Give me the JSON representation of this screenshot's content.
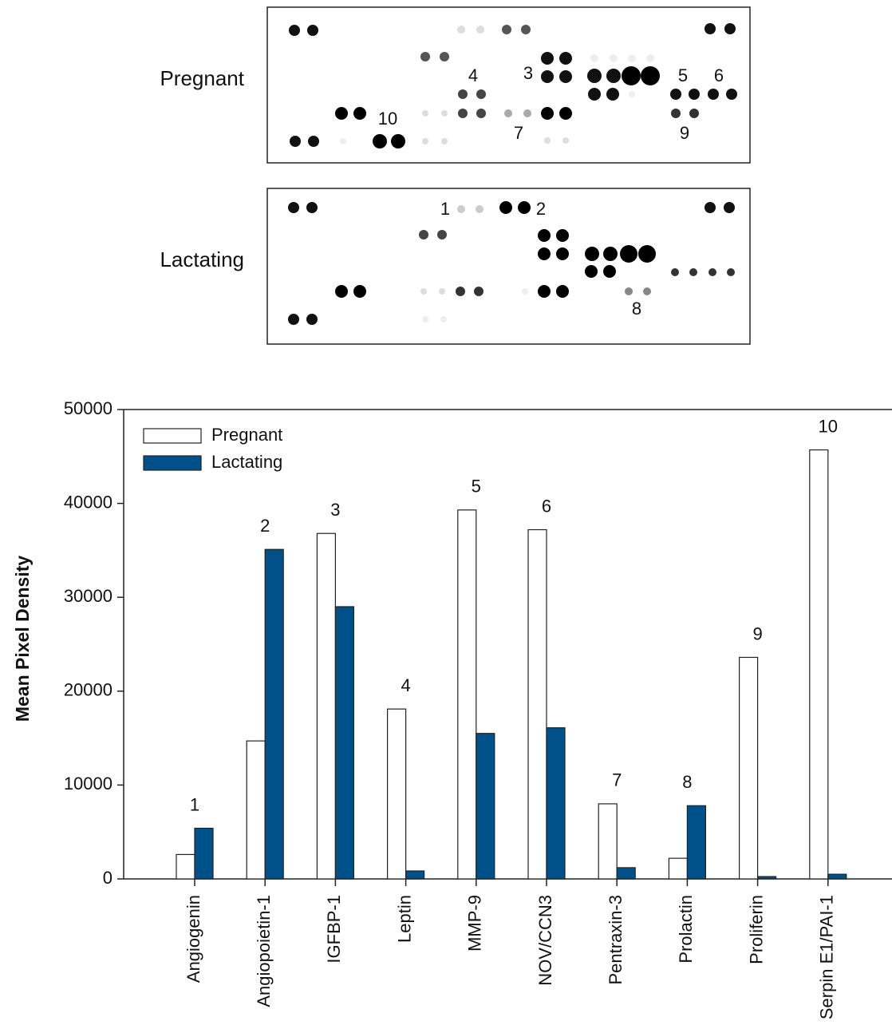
{
  "blots": [
    {
      "label": "Pregnant",
      "annotations": [
        "4",
        "3",
        "5",
        "6",
        "10",
        "7",
        "9"
      ]
    },
    {
      "label": "Lactating",
      "annotations": [
        "1",
        "2",
        "8"
      ]
    }
  ],
  "chart_data": {
    "type": "bar",
    "ylabel": "Mean Pixel Density",
    "categories": [
      "Angiogenin",
      "Angiopoietin-1",
      "IGFBP-1",
      "Leptin",
      "MMP-9",
      "NOV/CCN3",
      "Pentraxin-3",
      "Prolactin",
      "Proliferin",
      "Serpin E1/PAI-1"
    ],
    "series": [
      {
        "name": "Pregnant",
        "color": "#ffffff",
        "values": [
          2600,
          14700,
          36800,
          18100,
          39300,
          37200,
          8000,
          2200,
          23600,
          45700
        ]
      },
      {
        "name": "Lactating",
        "color": "#00508a",
        "values": [
          5400,
          35100,
          29000,
          850,
          15500,
          16100,
          1200,
          7800,
          250,
          500
        ]
      }
    ],
    "annotations": [
      "1",
      "2",
      "3",
      "4",
      "5",
      "6",
      "7",
      "8",
      "9",
      "10"
    ],
    "ylim": [
      0,
      50000
    ],
    "yticks": [
      0,
      10000,
      20000,
      30000,
      40000,
      50000
    ],
    "legend": "upper-left"
  }
}
